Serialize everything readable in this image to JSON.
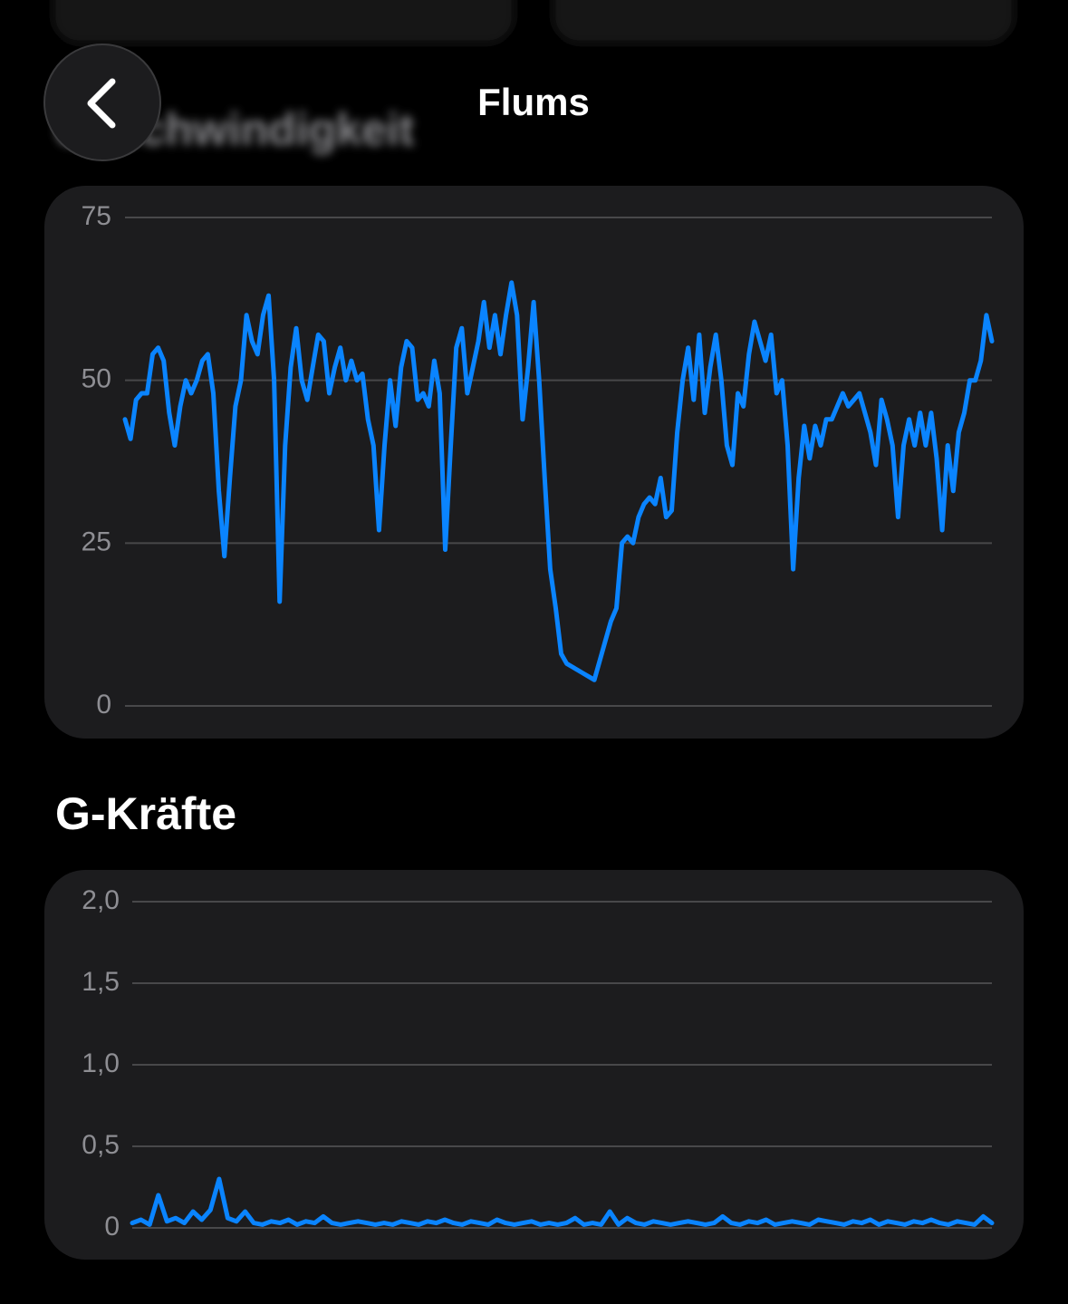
{
  "header": {
    "title": "Flums"
  },
  "sections": [
    "Geschwindigkeit",
    "G-Kräfte"
  ],
  "chart_data": [
    {
      "type": "line",
      "color": "#0a84ff",
      "grid": true,
      "ylim": [
        0,
        75
      ],
      "yticks": [
        0,
        25,
        50,
        75
      ],
      "values": [
        44,
        41,
        47,
        48,
        48,
        54,
        55,
        53,
        45,
        40,
        46,
        50,
        48,
        50,
        53,
        54,
        48,
        33,
        23,
        35,
        46,
        50,
        60,
        56,
        54,
        60,
        63,
        50,
        16,
        40,
        52,
        58,
        50,
        47,
        52,
        57,
        56,
        48,
        52,
        55,
        50,
        53,
        50,
        51,
        44,
        40,
        27,
        40,
        50,
        43,
        52,
        56,
        55,
        47,
        48,
        46,
        53,
        48,
        24,
        40,
        55,
        58,
        48,
        52,
        56,
        62,
        55,
        60,
        54,
        60,
        65,
        60,
        44,
        52,
        62,
        50,
        35,
        21,
        15,
        8,
        6.5,
        6,
        5.5,
        5,
        4.5,
        4,
        7,
        10,
        13,
        15,
        25,
        26,
        25,
        29,
        31,
        32,
        31,
        35,
        29,
        30,
        42,
        50,
        55,
        47,
        57,
        45,
        52,
        57,
        50,
        40,
        37,
        48,
        46,
        54,
        59,
        56,
        53,
        57,
        48,
        50,
        40,
        21,
        35,
        43,
        38,
        43,
        40,
        44,
        44,
        46,
        48,
        46,
        47,
        48,
        45,
        42,
        37,
        47,
        44,
        40,
        29,
        40,
        44,
        40,
        45,
        40,
        45,
        38,
        27,
        40,
        33,
        42,
        45,
        50,
        50,
        53,
        60,
        56
      ]
    },
    {
      "type": "line",
      "color": "#0a84ff",
      "grid": true,
      "ylim": [
        0,
        2
      ],
      "yticks": [
        0,
        {
          "value": 0.5,
          "label": "0,5"
        },
        {
          "value": 1,
          "label": "1,0"
        },
        {
          "value": 1.5,
          "label": "1,5"
        },
        {
          "value": 2,
          "label": "2,0"
        }
      ],
      "values": [
        0.03,
        0.05,
        0.02,
        0.2,
        0.04,
        0.06,
        0.03,
        0.1,
        0.05,
        0.11,
        0.3,
        0.06,
        0.04,
        0.1,
        0.03,
        0.02,
        0.04,
        0.03,
        0.05,
        0.02,
        0.04,
        0.03,
        0.07,
        0.03,
        0.02,
        0.03,
        0.04,
        0.03,
        0.02,
        0.03,
        0.02,
        0.04,
        0.03,
        0.02,
        0.04,
        0.03,
        0.05,
        0.03,
        0.02,
        0.04,
        0.03,
        0.02,
        0.05,
        0.03,
        0.02,
        0.03,
        0.04,
        0.02,
        0.03,
        0.02,
        0.03,
        0.06,
        0.02,
        0.03,
        0.02,
        0.1,
        0.02,
        0.06,
        0.03,
        0.02,
        0.04,
        0.03,
        0.02,
        0.03,
        0.04,
        0.03,
        0.02,
        0.03,
        0.07,
        0.03,
        0.02,
        0.04,
        0.03,
        0.05,
        0.02,
        0.03,
        0.04,
        0.03,
        0.02,
        0.05,
        0.04,
        0.03,
        0.02,
        0.04,
        0.03,
        0.05,
        0.02,
        0.04,
        0.03,
        0.02,
        0.04,
        0.03,
        0.05,
        0.03,
        0.02,
        0.04,
        0.03,
        0.02,
        0.07,
        0.03
      ]
    }
  ]
}
